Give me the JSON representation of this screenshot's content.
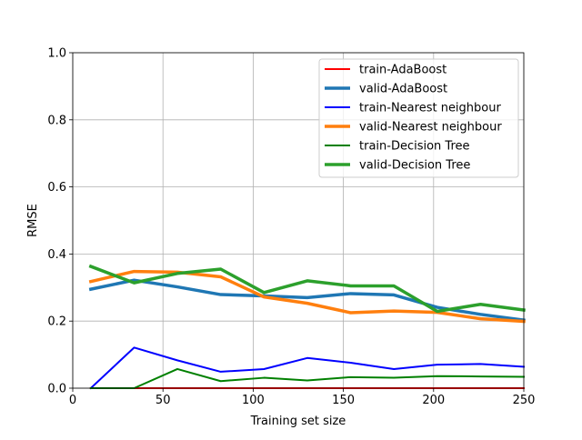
{
  "chart_data": {
    "type": "line",
    "title": "",
    "xlabel": "Training set size",
    "ylabel": "RMSE",
    "xlim": [
      0,
      250
    ],
    "ylim": [
      0,
      1.0
    ],
    "xticks": [
      0,
      50,
      100,
      150,
      200,
      250
    ],
    "yticks": [
      0.0,
      0.2,
      0.4,
      0.6,
      0.8,
      1.0
    ],
    "ytick_labels": [
      "0.0",
      "0.2",
      "0.4",
      "0.6",
      "0.8",
      "1.0"
    ],
    "grid": true,
    "legend_position": "upper-right",
    "x": [
      10,
      34,
      58,
      82,
      106,
      130,
      154,
      178,
      202,
      226,
      250
    ],
    "series": [
      {
        "name": "train-AdaBoost",
        "color": "#ff0000",
        "width": "thin",
        "values": [
          0.0,
          0.0,
          0.0,
          0.0,
          0.0,
          0.0,
          0.0,
          0.0,
          0.0,
          0.0,
          0.0
        ]
      },
      {
        "name": "valid-AdaBoost",
        "color": "#1f77b4",
        "width": "thick",
        "values": [
          0.295,
          0.322,
          0.302,
          0.279,
          0.275,
          0.27,
          0.282,
          0.278,
          0.241,
          0.22,
          0.203
        ]
      },
      {
        "name": "train-Nearest neighbour",
        "color": "#0000ff",
        "width": "thin",
        "values": [
          0.0,
          0.121,
          0.083,
          0.049,
          0.057,
          0.09,
          0.076,
          0.057,
          0.07,
          0.072,
          0.064
        ]
      },
      {
        "name": "valid-Nearest neighbour",
        "color": "#ff7f0e",
        "width": "thick",
        "values": [
          0.318,
          0.348,
          0.346,
          0.332,
          0.272,
          0.253,
          0.225,
          0.23,
          0.226,
          0.207,
          0.199
        ]
      },
      {
        "name": "train-Decision Tree",
        "color": "#008000",
        "width": "thin",
        "values": [
          0.0,
          0.0,
          0.057,
          0.021,
          0.031,
          0.023,
          0.033,
          0.031,
          0.036,
          0.035,
          0.034
        ]
      },
      {
        "name": "valid-Decision Tree",
        "color": "#2ca02c",
        "width": "thick",
        "values": [
          0.363,
          0.314,
          0.342,
          0.355,
          0.285,
          0.32,
          0.305,
          0.305,
          0.229,
          0.25,
          0.233
        ]
      }
    ]
  }
}
